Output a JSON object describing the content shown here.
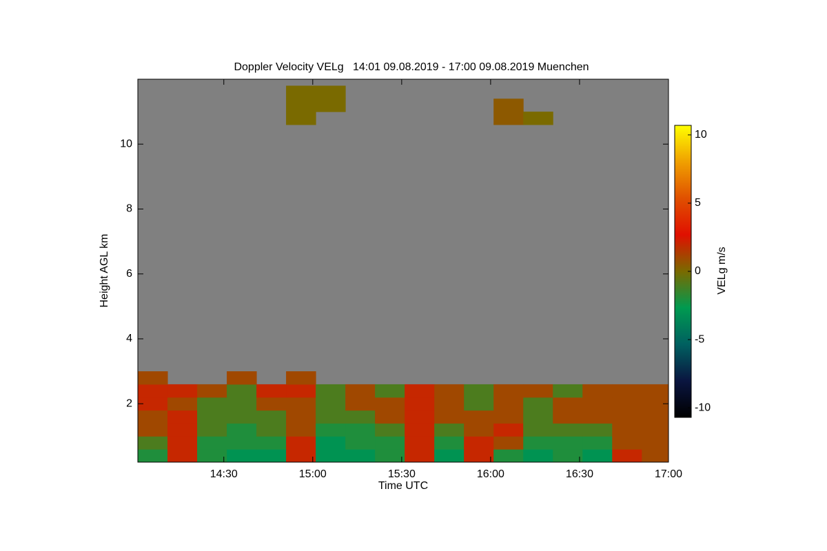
{
  "chart_data": {
    "type": "heatmap",
    "title": "Doppler Velocity VELg   14:01 09.08.2019 - 17:00 09.08.2019 Muenchen",
    "x_label": "Time UTC",
    "y_label": "Height AGL km",
    "colorbar_label": "VELg m/s",
    "xlim": [
      841,
      1020
    ],
    "xticks": [
      {
        "value": 870,
        "label": "14:30"
      },
      {
        "value": 900,
        "label": "15:00"
      },
      {
        "value": 930,
        "label": "15:30"
      },
      {
        "value": 960,
        "label": "16:00"
      },
      {
        "value": 990,
        "label": "16:30"
      },
      {
        "value": 1020,
        "label": "17:00"
      }
    ],
    "ylim": [
      0.2,
      12
    ],
    "yticks": [
      2,
      4,
      6,
      8,
      10
    ],
    "clim": [
      -10.7,
      10.7
    ],
    "cticks": [
      10,
      5,
      0,
      -5,
      -10
    ],
    "colors": [
      "#000000",
      "#0a1540",
      "#006060",
      "#009a50",
      "#7a6a00",
      "#e01000",
      "#e05000",
      "#f0a000",
      "#ffff00"
    ],
    "nodata_color": "#808080",
    "x": [
      846,
      856,
      866,
      876,
      886,
      896,
      906,
      916,
      926,
      936,
      946,
      956,
      966,
      976,
      986,
      996,
      1006,
      1016
    ],
    "y": [
      0.4,
      0.8,
      1.2,
      1.6,
      2.0,
      2.4,
      2.8,
      3.2,
      3.6,
      4.0,
      4.4,
      4.8,
      5.2,
      5.6,
      6.0,
      6.4,
      6.8,
      7.2,
      7.6,
      8.0,
      8.4,
      8.8,
      9.2,
      9.6,
      10.0,
      10.4,
      10.8,
      11.2,
      11.6
    ],
    "values": [
      [
        -2,
        2,
        -2,
        -3,
        -3,
        2,
        -3,
        -3,
        -2,
        2,
        -3,
        2,
        -2,
        -3,
        -2,
        -3,
        2,
        1
      ],
      [
        -1,
        2,
        -2,
        -2,
        -2,
        2,
        -3,
        -2,
        -2,
        2,
        -2,
        2,
        1,
        -2,
        -2,
        -2,
        1,
        1
      ],
      [
        1,
        2,
        -1,
        -2,
        -1,
        1,
        -2,
        -2,
        -1,
        2,
        -1,
        1,
        2,
        -1,
        -1,
        -1,
        1,
        1
      ],
      [
        1,
        2,
        -1,
        -1,
        -1,
        1,
        -1,
        -1,
        1,
        2,
        1,
        1,
        1,
        -1,
        1,
        1,
        1,
        1
      ],
      [
        2,
        1,
        -1,
        -1,
        1,
        1,
        -1,
        1,
        1,
        2,
        1,
        -1,
        1,
        -1,
        1,
        1,
        1,
        1
      ],
      [
        2,
        2,
        1,
        -1,
        2,
        2,
        -1,
        1,
        -1,
        2,
        1,
        -1,
        1,
        1,
        -1,
        1,
        1,
        1
      ],
      [
        1,
        null,
        null,
        1,
        null,
        1,
        null,
        null,
        null,
        null,
        null,
        null,
        null,
        null,
        null,
        null,
        null,
        null
      ],
      [
        null,
        null,
        null,
        null,
        null,
        null,
        null,
        null,
        null,
        null,
        null,
        null,
        null,
        null,
        null,
        null,
        null,
        null
      ],
      [
        null,
        null,
        null,
        null,
        null,
        null,
        null,
        null,
        null,
        null,
        null,
        null,
        null,
        null,
        null,
        null,
        null,
        null
      ],
      [
        null,
        null,
        null,
        null,
        null,
        null,
        null,
        null,
        null,
        null,
        null,
        null,
        null,
        null,
        null,
        null,
        null,
        null
      ],
      [
        null,
        null,
        null,
        null,
        null,
        null,
        null,
        null,
        null,
        null,
        null,
        null,
        null,
        null,
        null,
        null,
        null,
        null
      ],
      [
        null,
        null,
        null,
        null,
        null,
        null,
        null,
        null,
        null,
        null,
        null,
        null,
        null,
        null,
        null,
        null,
        null,
        null
      ],
      [
        null,
        null,
        null,
        null,
        null,
        null,
        null,
        null,
        null,
        null,
        null,
        null,
        null,
        null,
        null,
        null,
        null,
        null
      ],
      [
        null,
        null,
        null,
        null,
        null,
        null,
        null,
        null,
        null,
        null,
        null,
        null,
        null,
        null,
        null,
        null,
        null,
        null
      ],
      [
        null,
        null,
        null,
        null,
        null,
        null,
        null,
        null,
        null,
        null,
        null,
        null,
        null,
        null,
        null,
        null,
        null,
        null
      ],
      [
        null,
        null,
        null,
        null,
        null,
        null,
        null,
        null,
        null,
        null,
        null,
        null,
        null,
        null,
        null,
        null,
        null,
        null
      ],
      [
        null,
        null,
        null,
        null,
        null,
        null,
        null,
        null,
        null,
        null,
        null,
        null,
        null,
        null,
        null,
        null,
        null,
        null
      ],
      [
        null,
        null,
        null,
        null,
        null,
        null,
        null,
        null,
        null,
        null,
        null,
        null,
        null,
        null,
        null,
        null,
        null,
        null
      ],
      [
        null,
        null,
        null,
        null,
        null,
        null,
        null,
        null,
        null,
        null,
        null,
        null,
        null,
        null,
        null,
        null,
        null,
        null
      ],
      [
        null,
        null,
        null,
        null,
        null,
        null,
        null,
        null,
        null,
        null,
        null,
        null,
        null,
        null,
        null,
        null,
        null,
        null
      ],
      [
        null,
        null,
        null,
        null,
        null,
        null,
        null,
        null,
        null,
        null,
        null,
        null,
        null,
        null,
        null,
        null,
        null,
        null
      ],
      [
        null,
        null,
        null,
        null,
        null,
        null,
        null,
        null,
        null,
        null,
        null,
        null,
        null,
        null,
        null,
        null,
        null,
        null
      ],
      [
        null,
        null,
        null,
        null,
        null,
        null,
        null,
        null,
        null,
        null,
        null,
        null,
        null,
        null,
        null,
        null,
        null,
        null
      ],
      [
        null,
        null,
        null,
        null,
        null,
        null,
        null,
        null,
        null,
        null,
        null,
        null,
        null,
        null,
        null,
        null,
        null,
        null
      ],
      [
        null,
        null,
        null,
        null,
        null,
        null,
        null,
        null,
        null,
        null,
        null,
        null,
        null,
        null,
        null,
        null,
        null,
        null
      ],
      [
        null,
        null,
        null,
        null,
        null,
        null,
        null,
        null,
        null,
        null,
        null,
        null,
        null,
        null,
        null,
        null,
        null,
        null
      ],
      [
        null,
        null,
        null,
        null,
        null,
        0,
        null,
        null,
        null,
        null,
        null,
        null,
        0.5,
        0,
        null,
        null,
        null,
        null
      ],
      [
        null,
        null,
        null,
        null,
        null,
        0,
        0,
        null,
        null,
        null,
        null,
        null,
        0.5,
        null,
        null,
        null,
        null,
        null
      ],
      [
        null,
        null,
        null,
        null,
        null,
        0,
        0,
        null,
        null,
        null,
        null,
        null,
        null,
        null,
        null,
        null,
        null,
        null
      ]
    ]
  }
}
